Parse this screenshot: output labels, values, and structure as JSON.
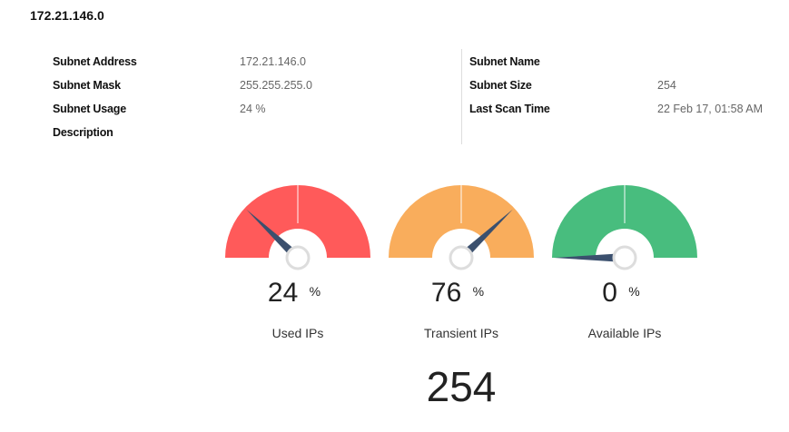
{
  "title": "172.21.146.0",
  "details": {
    "left": [
      {
        "label": "Subnet Address",
        "value": "172.21.146.0"
      },
      {
        "label": "Subnet Mask",
        "value": "255.255.255.0"
      },
      {
        "label": "Subnet Usage",
        "value": "24 %"
      },
      {
        "label": "Description",
        "value": ""
      }
    ],
    "right": [
      {
        "label": "Subnet Name",
        "value": ""
      },
      {
        "label": "Subnet Size",
        "value": "254"
      },
      {
        "label": "Last Scan Time",
        "value": "22 Feb 17, 01:58 AM"
      }
    ]
  },
  "gauges": [
    {
      "name": "used-ips",
      "label": "Used IPs",
      "value": "24",
      "unit": "%",
      "percent": 24,
      "color": "#ff5a5a"
    },
    {
      "name": "transient-ips",
      "label": "Transient IPs",
      "value": "76",
      "unit": "%",
      "percent": 76,
      "color": "#f9ad5c"
    },
    {
      "name": "available-ips",
      "label": "Available IPs",
      "value": "0",
      "unit": "%",
      "percent": 0,
      "color": "#48bd7e"
    }
  ],
  "total": "254",
  "colors": {
    "needle": "#3b506e",
    "hub": "#dddddd"
  }
}
